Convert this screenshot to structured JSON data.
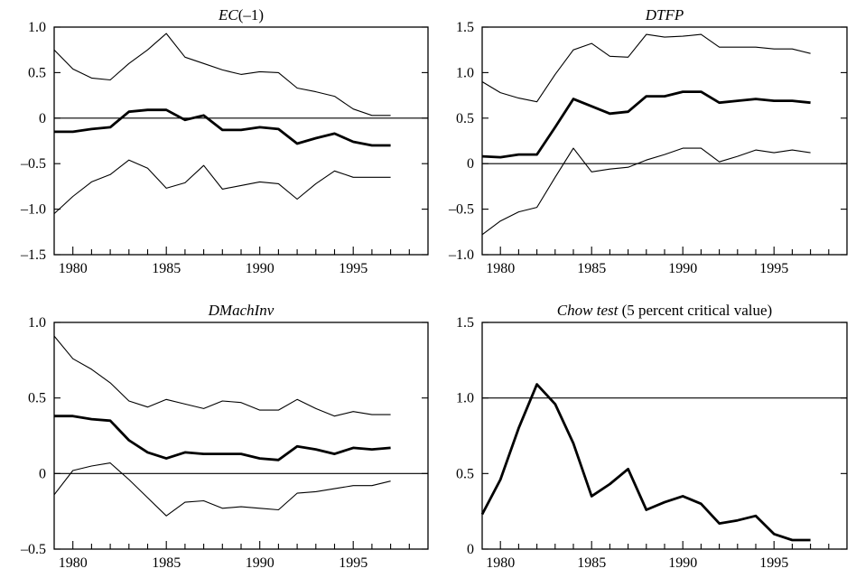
{
  "chart_data": [
    {
      "type": "line",
      "title_italic": "EC",
      "title_plain": "(–1)",
      "ylim": [
        -1.5,
        1.0
      ],
      "xlim": [
        1979,
        1999
      ],
      "yticks": [
        1.0,
        0.5,
        0,
        -0.5,
        -1.0,
        -1.5
      ],
      "ytick_labels": [
        "1.0",
        "0.5",
        "0",
        "–0.5",
        "–1.0",
        "–1.5"
      ],
      "xticks": [
        1980,
        1985,
        1990,
        1995
      ],
      "xtick_labels": [
        "1980",
        "1985",
        "1990",
        "1995"
      ],
      "reference_line": 0,
      "x": [
        1979,
        1980,
        1981,
        1982,
        1983,
        1984,
        1985,
        1986,
        1987,
        1988,
        1989,
        1990,
        1991,
        1992,
        1993,
        1994,
        1995,
        1996,
        1997
      ],
      "series": [
        {
          "role": "upper",
          "values": [
            0.75,
            0.54,
            0.44,
            0.42,
            0.6,
            0.75,
            0.93,
            0.67,
            0.6,
            0.53,
            0.48,
            0.51,
            0.5,
            0.33,
            0.29,
            0.24,
            0.1,
            0.03,
            0.03
          ]
        },
        {
          "role": "estimate",
          "values": [
            -0.15,
            -0.15,
            -0.12,
            -0.1,
            0.07,
            0.09,
            0.09,
            -0.02,
            0.03,
            -0.13,
            -0.13,
            -0.1,
            -0.12,
            -0.28,
            -0.22,
            -0.17,
            -0.26,
            -0.3,
            -0.3
          ]
        },
        {
          "role": "lower",
          "values": [
            -1.05,
            -0.86,
            -0.7,
            -0.62,
            -0.46,
            -0.55,
            -0.77,
            -0.71,
            -0.52,
            -0.78,
            -0.74,
            -0.7,
            -0.72,
            -0.89,
            -0.72,
            -0.58,
            -0.65,
            -0.65,
            -0.65
          ]
        }
      ]
    },
    {
      "type": "line",
      "title_italic": "DTFP",
      "title_plain": "",
      "ylim": [
        -1.0,
        1.5
      ],
      "xlim": [
        1979,
        1999
      ],
      "yticks": [
        1.5,
        1.0,
        0.5,
        0,
        -0.5,
        -1.0
      ],
      "ytick_labels": [
        "1.5",
        "1.0",
        "0.5",
        "0",
        "–0.5",
        "–1.0"
      ],
      "xticks": [
        1980,
        1985,
        1990,
        1995
      ],
      "xtick_labels": [
        "1980",
        "1985",
        "1990",
        "1995"
      ],
      "reference_line": 0,
      "x": [
        1979,
        1980,
        1981,
        1982,
        1983,
        1984,
        1985,
        1986,
        1987,
        1988,
        1989,
        1990,
        1991,
        1992,
        1993,
        1994,
        1995,
        1996,
        1997
      ],
      "series": [
        {
          "role": "upper",
          "values": [
            0.9,
            0.78,
            0.72,
            0.68,
            0.98,
            1.25,
            1.32,
            1.18,
            1.17,
            1.42,
            1.39,
            1.4,
            1.42,
            1.28,
            1.28,
            1.28,
            1.26,
            1.26,
            1.21
          ]
        },
        {
          "role": "estimate",
          "values": [
            0.08,
            0.07,
            0.1,
            0.1,
            0.4,
            0.71,
            0.63,
            0.55,
            0.57,
            0.74,
            0.74,
            0.79,
            0.79,
            0.67,
            0.69,
            0.71,
            0.69,
            0.69,
            0.67
          ]
        },
        {
          "role": "lower",
          "values": [
            -0.78,
            -0.63,
            -0.53,
            -0.48,
            -0.15,
            0.17,
            -0.09,
            -0.06,
            -0.04,
            0.04,
            0.1,
            0.17,
            0.17,
            0.02,
            0.08,
            0.15,
            0.12,
            0.15,
            0.12
          ]
        }
      ]
    },
    {
      "type": "line",
      "title_italic": "DMachInv",
      "title_plain": "",
      "ylim": [
        -0.5,
        1.0
      ],
      "xlim": [
        1979,
        1999
      ],
      "yticks": [
        1.0,
        0.5,
        0,
        -0.5
      ],
      "ytick_labels": [
        "1.0",
        "0.5",
        "0",
        "–0.5"
      ],
      "xticks": [
        1980,
        1985,
        1990,
        1995
      ],
      "xtick_labels": [
        "1980",
        "1985",
        "1990",
        "1995"
      ],
      "reference_line": 0,
      "x": [
        1979,
        1980,
        1981,
        1982,
        1983,
        1984,
        1985,
        1986,
        1987,
        1988,
        1989,
        1990,
        1991,
        1992,
        1993,
        1994,
        1995,
        1996,
        1997
      ],
      "series": [
        {
          "role": "upper",
          "values": [
            0.91,
            0.76,
            0.69,
            0.6,
            0.48,
            0.44,
            0.49,
            0.46,
            0.43,
            0.48,
            0.47,
            0.42,
            0.42,
            0.49,
            0.43,
            0.38,
            0.41,
            0.39,
            0.39
          ]
        },
        {
          "role": "estimate",
          "values": [
            0.38,
            0.38,
            0.36,
            0.35,
            0.22,
            0.14,
            0.1,
            0.14,
            0.13,
            0.13,
            0.13,
            0.1,
            0.09,
            0.18,
            0.16,
            0.13,
            0.17,
            0.16,
            0.17
          ]
        },
        {
          "role": "lower",
          "values": [
            -0.14,
            0.02,
            0.05,
            0.07,
            -0.04,
            -0.16,
            -0.28,
            -0.19,
            -0.18,
            -0.23,
            -0.22,
            -0.23,
            -0.24,
            -0.13,
            -0.12,
            -0.1,
            -0.08,
            -0.08,
            -0.05
          ]
        }
      ]
    },
    {
      "type": "line",
      "title_italic": "Chow test",
      "title_plain": " (5 percent critical value)",
      "ylim": [
        0,
        1.5
      ],
      "xlim": [
        1979,
        1999
      ],
      "yticks": [
        1.5,
        1.0,
        0.5,
        0
      ],
      "ytick_labels": [
        "1.5",
        "1.0",
        "0.5",
        "0"
      ],
      "xticks": [
        1980,
        1985,
        1990,
        1995
      ],
      "xtick_labels": [
        "1980",
        "1985",
        "1990",
        "1995"
      ],
      "reference_line": 1.0,
      "x": [
        1979,
        1980,
        1981,
        1982,
        1983,
        1984,
        1985,
        1986,
        1987,
        1988,
        1989,
        1990,
        1991,
        1992,
        1993,
        1994,
        1995,
        1996,
        1997
      ],
      "series": [
        {
          "role": "estimate",
          "values": [
            0.23,
            0.46,
            0.8,
            1.09,
            0.96,
            0.7,
            0.35,
            0.43,
            0.53,
            0.26,
            0.31,
            0.35,
            0.3,
            0.17,
            0.19,
            0.22,
            0.1,
            0.06,
            0.06
          ]
        }
      ]
    }
  ]
}
